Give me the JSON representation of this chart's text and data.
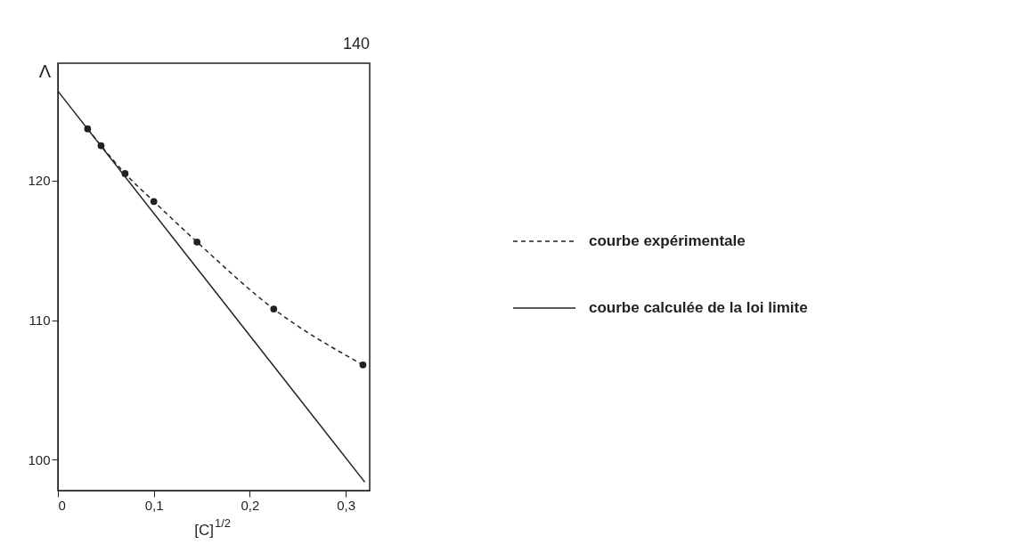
{
  "chart_data": {
    "type": "line",
    "xlabel": "[C]$^{1/2}$",
    "ylabel": "Λ",
    "annotations": [
      "140"
    ],
    "xlim": [
      0,
      0.325
    ],
    "ylim": [
      97.8,
      128.4
    ],
    "xticks": [
      0,
      {
        "value": 0.1,
        "label": "0,1"
      },
      {
        "value": 0.2,
        "label": "0,2"
      },
      {
        "value": 0.3,
        "label": "0,3"
      }
    ],
    "yticks": [
      100,
      110,
      120
    ],
    "grid": false,
    "legend": "right",
    "series": [
      {
        "name": "courbe expérimentale",
        "color": "#222222",
        "marker": "circle",
        "line_style": "dashed",
        "x": [
          0.031,
          0.045,
          0.07,
          0.1,
          0.145,
          0.225,
          0.318
        ],
        "values": [
          123.7,
          122.5,
          120.5,
          118.5,
          115.6,
          110.8,
          106.8
        ]
      },
      {
        "name": "courbe calculée de la loi limite",
        "color": "#222222",
        "marker": "none",
        "line_style": "solid",
        "x": [
          0,
          0.32
        ],
        "values": [
          126.4,
          98.4
        ]
      }
    ]
  }
}
